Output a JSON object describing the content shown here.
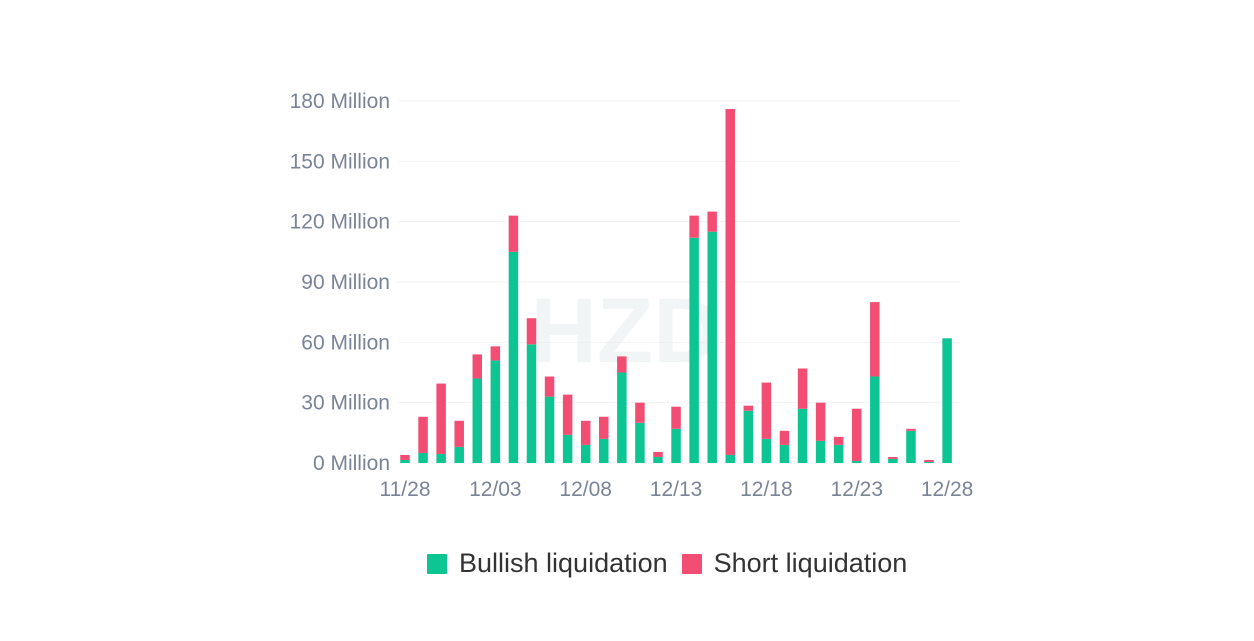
{
  "chart_data": {
    "type": "bar",
    "stacked": true,
    "categories": [
      "11/28",
      "11/29",
      "11/30",
      "12/01",
      "12/02",
      "12/03",
      "12/04",
      "12/05",
      "12/06",
      "12/07",
      "12/08",
      "12/09",
      "12/10",
      "12/11",
      "12/12",
      "12/13",
      "12/14",
      "12/15",
      "12/16",
      "12/17",
      "12/18",
      "12/19",
      "12/20",
      "12/21",
      "12/22",
      "12/23",
      "12/24",
      "12/25",
      "12/26",
      "12/27",
      "12/28"
    ],
    "x_tick_labels": [
      "11/28",
      "12/03",
      "12/08",
      "12/13",
      "12/18",
      "12/23",
      "12/28"
    ],
    "y_ticks": [
      0,
      30,
      60,
      90,
      120,
      150,
      180
    ],
    "y_tick_labels": [
      "0 Million",
      "30 Million",
      "60 Million",
      "90 Million",
      "120 Million",
      "150 Million",
      "180 Million"
    ],
    "ylim": [
      0,
      180
    ],
    "series": [
      {
        "name": "Bullish liquidation",
        "color": "#0dc493",
        "values": [
          1.5,
          5,
          4.5,
          8,
          42,
          51,
          105,
          59,
          33,
          14,
          9,
          12,
          45,
          20,
          3,
          17,
          112,
          115,
          4,
          26,
          12,
          9,
          27,
          11,
          9,
          1,
          43,
          2,
          16,
          0.5,
          62
        ]
      },
      {
        "name": "Short liquidation",
        "color": "#f24e73",
        "values": [
          2.5,
          18,
          35,
          13,
          12,
          7,
          18,
          13,
          10,
          20,
          12,
          11,
          8,
          10,
          2.5,
          11,
          11,
          10,
          172,
          2.5,
          28,
          7,
          20,
          19,
          4,
          26,
          37,
          1,
          1,
          1,
          0
        ]
      }
    ],
    "legend_position": "bottom",
    "grid": true,
    "watermark": "HZD"
  }
}
